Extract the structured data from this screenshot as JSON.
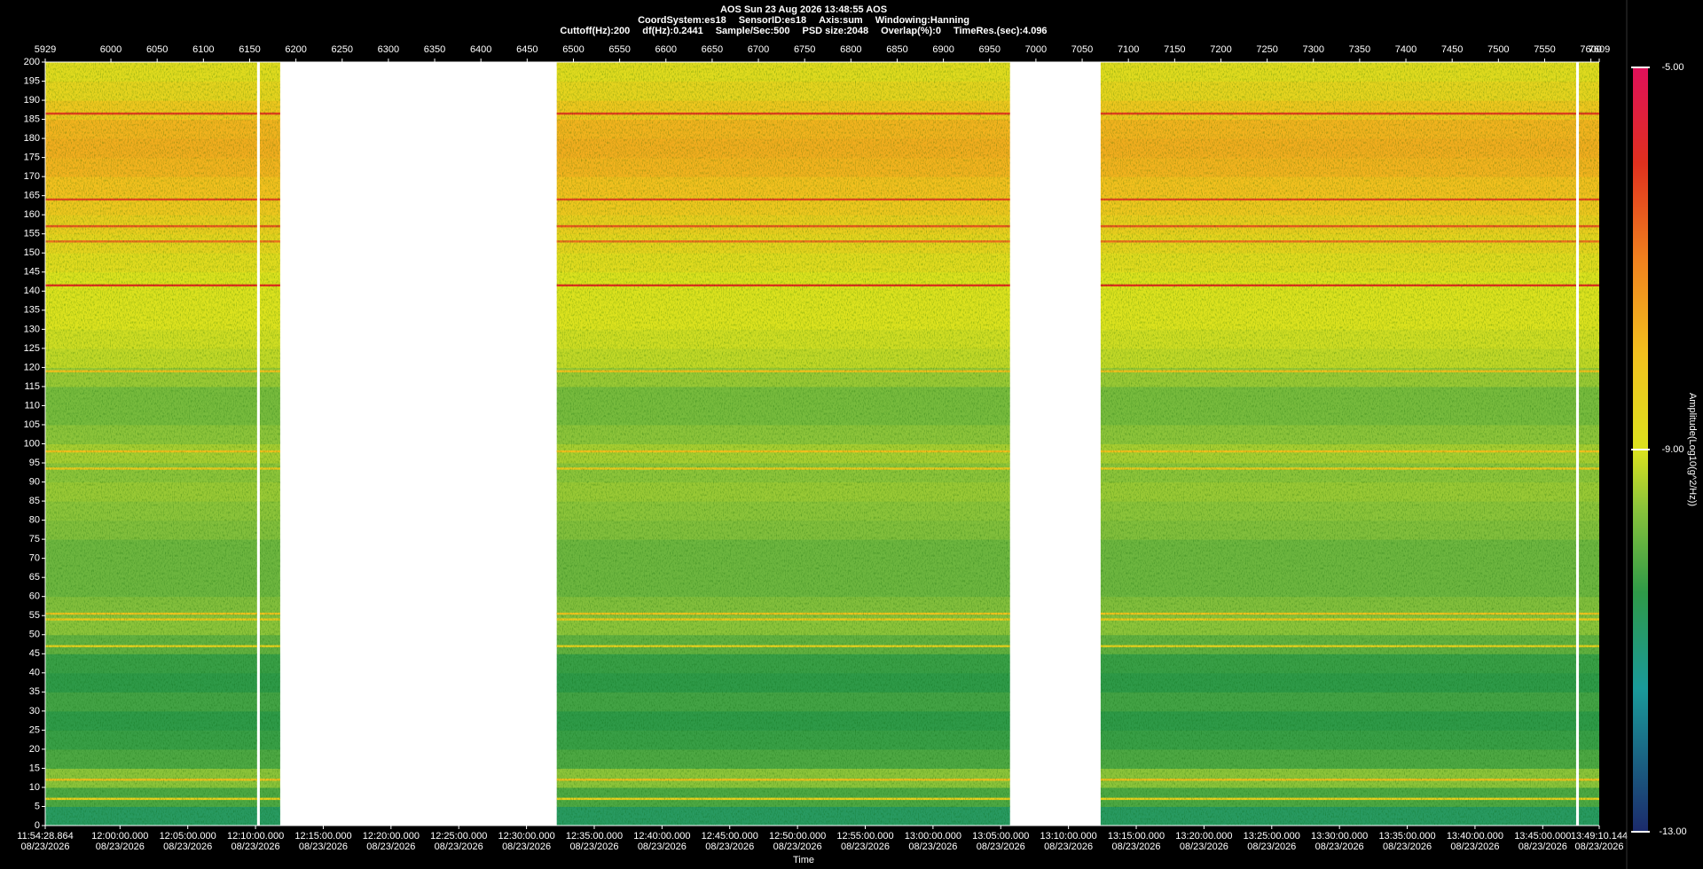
{
  "chart_data": {
    "type": "spectrogram",
    "header": {
      "title": "AOS  Sun 23 Aug 2026 13:48:55  AOS",
      "line2": [
        "CoordSystem:es18",
        "SensorID:es18",
        "Axis:sum",
        "Windowing:Hanning"
      ],
      "line3": [
        "Cuttoff(Hz):200",
        "df(Hz):0.2441",
        "Sample/Sec:500",
        "PSD size:2048",
        "Overlap(%):0",
        "TimeRes.(sec):4.096"
      ]
    },
    "x_label": "Time",
    "colorbar_label": "Amplitude(Log10(g^2/Hz))",
    "xlim": [
      5929,
      7609
    ],
    "xticks": [
      5929,
      6000,
      6050,
      6100,
      6150,
      6200,
      6250,
      6300,
      6350,
      6400,
      6450,
      6500,
      6550,
      6600,
      6650,
      6700,
      6750,
      6800,
      6850,
      6900,
      6950,
      7000,
      7050,
      7100,
      7150,
      7200,
      7250,
      7300,
      7350,
      7400,
      7450,
      7500,
      7550,
      7600,
      7609
    ],
    "time_date": "08/23/2026",
    "time_ticks": [
      {
        "value": 5929,
        "label": "11:54:28.864"
      },
      {
        "value": 6009.84,
        "label": "12:00:00.000"
      },
      {
        "value": 6083.09,
        "label": "12:05:00.000"
      },
      {
        "value": 6156.33,
        "label": "12:10:00.000"
      },
      {
        "value": 6229.57,
        "label": "12:15:00.000"
      },
      {
        "value": 6302.81,
        "label": "12:20:00.000"
      },
      {
        "value": 6376.05,
        "label": "12:25:00.000"
      },
      {
        "value": 6449.3,
        "label": "12:30:00.000"
      },
      {
        "value": 6522.54,
        "label": "12:35:00.000"
      },
      {
        "value": 6595.78,
        "label": "12:40:00.000"
      },
      {
        "value": 6669.02,
        "label": "12:45:00.000"
      },
      {
        "value": 6742.27,
        "label": "12:50:00.000"
      },
      {
        "value": 6815.51,
        "label": "12:55:00.000"
      },
      {
        "value": 6888.75,
        "label": "13:00:00.000"
      },
      {
        "value": 6961.99,
        "label": "13:05:00.000"
      },
      {
        "value": 7035.23,
        "label": "13:10:00.000"
      },
      {
        "value": 7108.48,
        "label": "13:15:00.000"
      },
      {
        "value": 7181.72,
        "label": "13:20:00.000"
      },
      {
        "value": 7254.96,
        "label": "13:25:00.000"
      },
      {
        "value": 7328.2,
        "label": "13:30:00.000"
      },
      {
        "value": 7401.45,
        "label": "13:35:00.000"
      },
      {
        "value": 7474.69,
        "label": "13:40:00.000"
      },
      {
        "value": 7547.93,
        "label": "13:45:00.000"
      },
      {
        "value": 7609,
        "label": "13:49:10.144"
      }
    ],
    "ylim": [
      0,
      200
    ],
    "yticks": [
      0,
      5,
      10,
      15,
      20,
      25,
      30,
      35,
      40,
      45,
      50,
      55,
      60,
      65,
      70,
      75,
      80,
      85,
      90,
      95,
      100,
      105,
      110,
      115,
      120,
      125,
      130,
      135,
      140,
      145,
      150,
      155,
      160,
      165,
      170,
      175,
      180,
      185,
      190,
      195,
      200
    ],
    "segments": [
      [
        5929,
        6158
      ],
      [
        6161,
        6183
      ],
      [
        6482,
        6972
      ],
      [
        7070,
        7584
      ],
      [
        7587,
        7609
      ]
    ],
    "bins": [
      0,
      5,
      10,
      15,
      20,
      25,
      30,
      35,
      40,
      45,
      50,
      55,
      60,
      65,
      70,
      75,
      80,
      85,
      90,
      95,
      100,
      105,
      110,
      115,
      120,
      125,
      130,
      135,
      140,
      145,
      150,
      155,
      160,
      165,
      170,
      175,
      180,
      185,
      190,
      195,
      200
    ],
    "z": [
      -10.8,
      -10.2,
      -9.6,
      -10.2,
      -10.4,
      -10.5,
      -10.3,
      -10.5,
      -10.4,
      -10.0,
      -9.6,
      -9.7,
      -9.9,
      -9.9,
      -9.9,
      -9.7,
      -9.6,
      -9.5,
      -9.6,
      -9.4,
      -9.6,
      -9.8,
      -9.8,
      -9.5,
      -9.2,
      -9.1,
      -9.0,
      -9.0,
      -9.0,
      -8.8,
      -8.6,
      -8.4,
      -8.2,
      -8.0,
      -7.8,
      -7.7,
      -7.8,
      -8.2,
      -8.6,
      -8.8
    ],
    "tones": [
      {
        "freq": 186.5,
        "amp": -6.2
      },
      {
        "freq": 164,
        "amp": -6.3
      },
      {
        "freq": 157,
        "amp": -6.5
      },
      {
        "freq": 153,
        "amp": -6.8
      },
      {
        "freq": 141.5,
        "amp": -6.0
      },
      {
        "freq": 119,
        "amp": -8.0
      },
      {
        "freq": 98,
        "amp": -8.0
      },
      {
        "freq": 93.5,
        "amp": -8.3
      },
      {
        "freq": 55.5,
        "amp": -8.1
      },
      {
        "freq": 54,
        "amp": -8.3
      },
      {
        "freq": 47,
        "amp": -8.5
      },
      {
        "freq": 12,
        "amp": -8.0
      },
      {
        "freq": 7,
        "amp": -8.5
      }
    ],
    "clim": [
      -13,
      -5
    ],
    "cticks": [
      {
        "value": -13,
        "label": "-13.00"
      },
      {
        "value": -9,
        "label": "-9.00"
      },
      {
        "value": -5,
        "label": "-5.00"
      }
    ],
    "colorscale": [
      [
        -13,
        "#1b2a6b"
      ],
      [
        -11.5,
        "#1a9a9a"
      ],
      [
        -10.5,
        "#2e9a48"
      ],
      [
        -9.6,
        "#8cc43a"
      ],
      [
        -9,
        "#dce21e"
      ],
      [
        -8,
        "#f2c01e"
      ],
      [
        -7,
        "#f0801e"
      ],
      [
        -6,
        "#e0301e"
      ],
      [
        -5,
        "#e0105a"
      ]
    ]
  }
}
